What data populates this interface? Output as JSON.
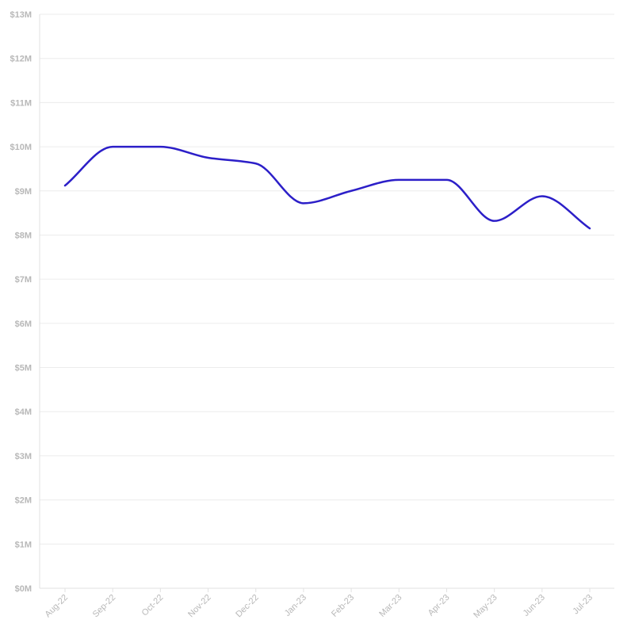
{
  "chart_data": {
    "type": "line",
    "categories": [
      "Aug-22",
      "Sep-22",
      "Oct-22",
      "Nov-22",
      "Dec-22",
      "Jan-23",
      "Feb-23",
      "Mar-23",
      "Apr-23",
      "May-23",
      "Jun-23",
      "Jul-23"
    ],
    "series": [
      {
        "values": [
          9.12,
          10.0,
          10.0,
          9.75,
          9.62,
          8.72,
          9.0,
          9.25,
          9.25,
          8.32,
          8.88,
          8.15
        ],
        "color": "#2c1fc8"
      }
    ],
    "y_ticks": [
      "$0M",
      "$1M",
      "$2M",
      "$3M",
      "$4M",
      "$5M",
      "$6M",
      "$7M",
      "$8M",
      "$9M",
      "$10M",
      "$11M",
      "$12M",
      "$13M"
    ],
    "ylim": [
      0,
      13
    ],
    "y_unit_prefix": "$",
    "y_unit_suffix": "M",
    "grid": true,
    "legend": "none",
    "title": "",
    "xlabel": "",
    "ylabel": "",
    "colors": {
      "line": "#2c1fc8",
      "grid": "#ececec",
      "axis": "#e2e2e2",
      "tick_label": "#b8b8b8"
    }
  }
}
